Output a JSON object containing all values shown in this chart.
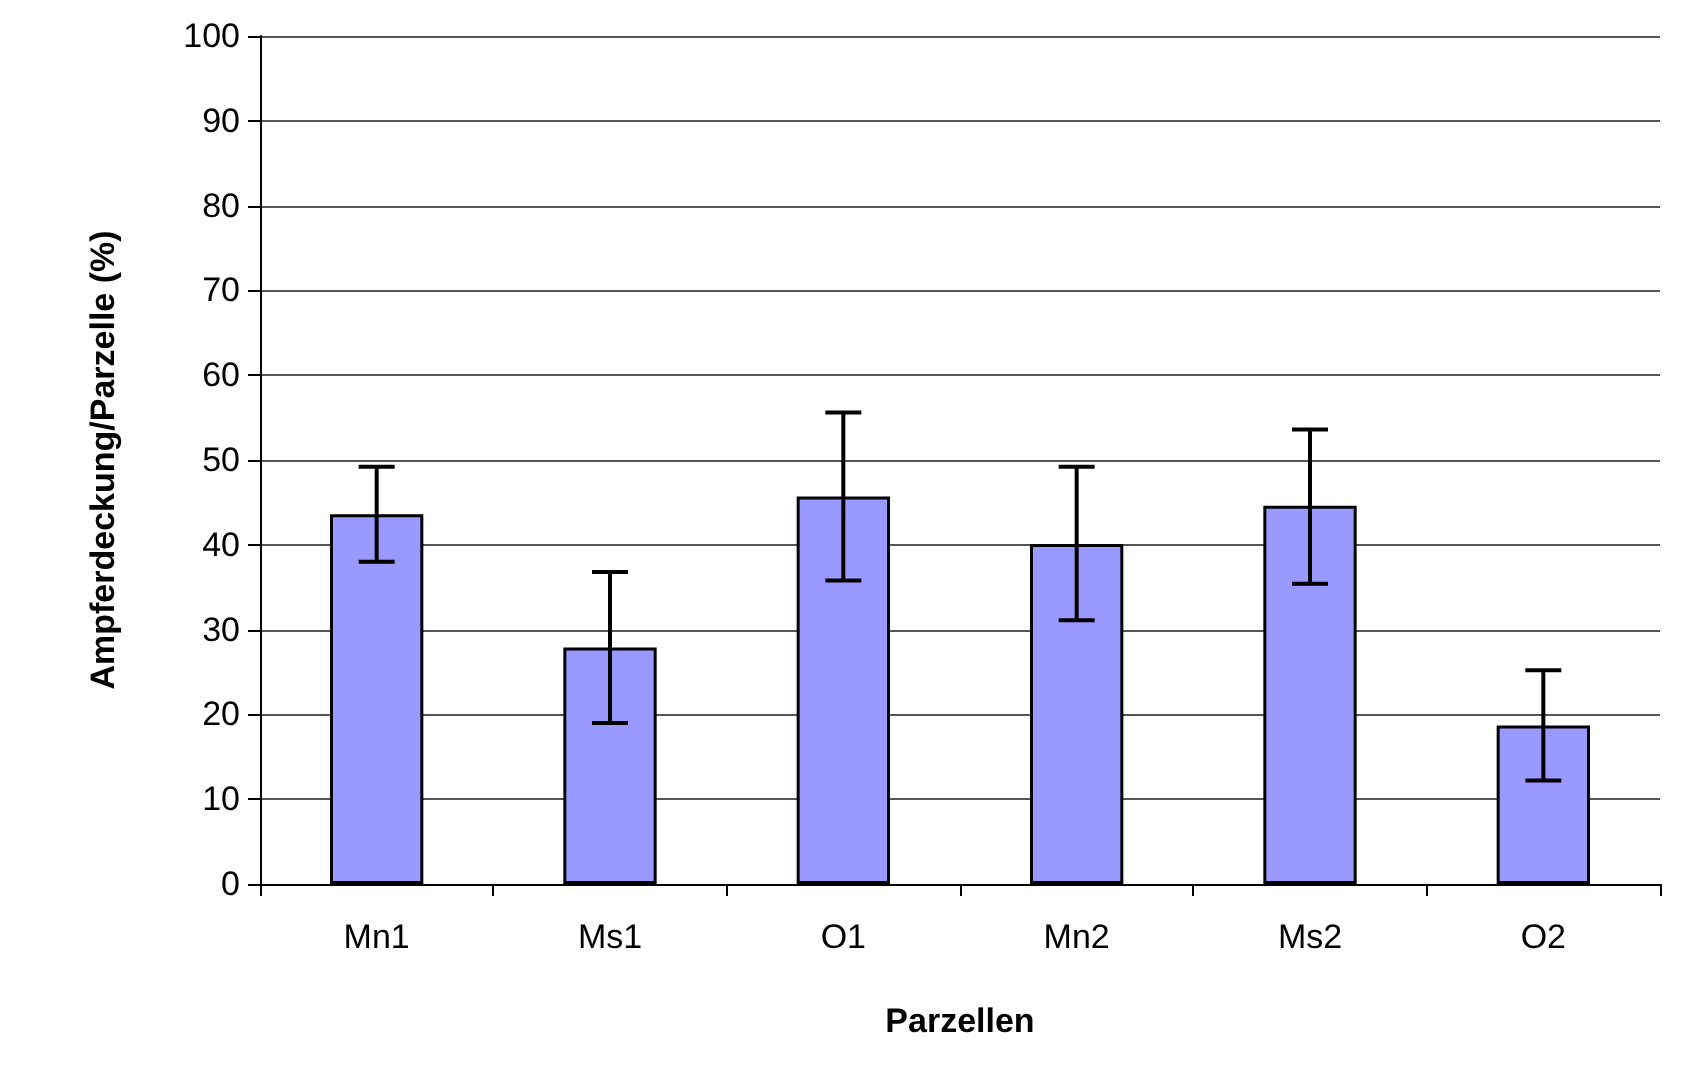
{
  "chart_data": {
    "type": "bar",
    "xlabel": "Parzellen",
    "ylabel": "Ampferdeckung/Parzelle (%)",
    "categories": [
      "Mn1",
      "Ms1",
      "O1",
      "Mn2",
      "Ms2",
      "O2"
    ],
    "values": [
      43.6,
      27.9,
      45.7,
      40.1,
      44.6,
      18.7
    ],
    "errors": [
      [
        38.0,
        49.2
      ],
      [
        19.0,
        36.8
      ],
      [
        35.8,
        55.6
      ],
      [
        31.1,
        49.2
      ],
      [
        35.4,
        53.6
      ],
      [
        12.2,
        25.2
      ]
    ],
    "color": "#9999ff",
    "ylim": [
      0,
      100
    ],
    "yticks": [
      0,
      10,
      20,
      30,
      40,
      50,
      60,
      70,
      80,
      90,
      100
    ],
    "grid": "y"
  }
}
